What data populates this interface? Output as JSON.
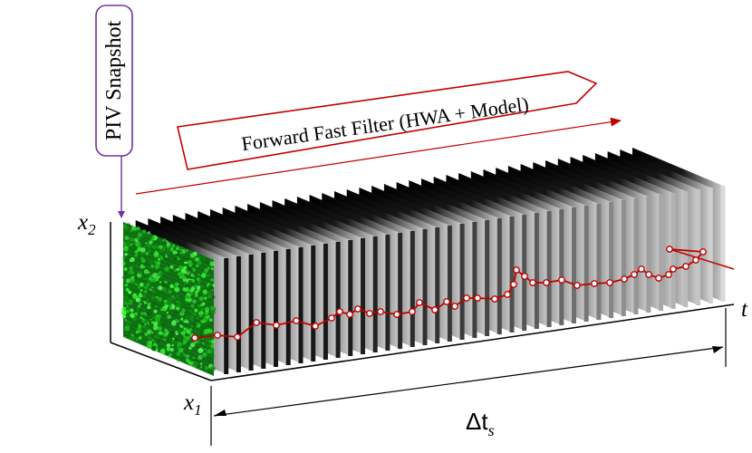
{
  "snapshot_label": "PIV Snapshot",
  "filter_label": "Forward Fast Filter (HWA + Model)",
  "axes": {
    "x2": {
      "base": "x",
      "sub": "2"
    },
    "x1": {
      "base": "x",
      "sub": "1"
    },
    "t": "t"
  },
  "duration": {
    "base": "Δt",
    "sub": "s"
  },
  "frame_count": 42,
  "colors": {
    "accent_red": "#c00000",
    "purple": "#7030a0",
    "piv_green": "#22cc22",
    "frame_dark": "#0a0a0a"
  }
}
